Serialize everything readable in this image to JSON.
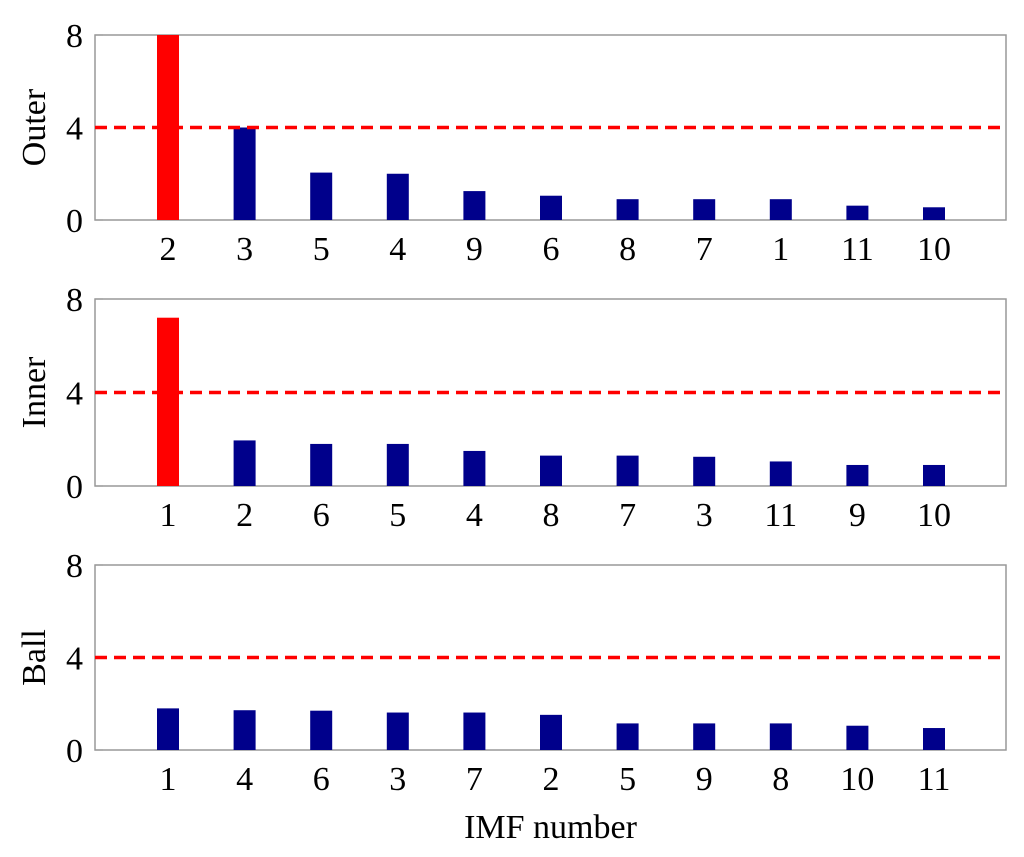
{
  "chart_data": [
    {
      "type": "bar",
      "ylabel": "Outer",
      "categories": [
        "2",
        "3",
        "5",
        "4",
        "9",
        "6",
        "8",
        "7",
        "1",
        "11",
        "10"
      ],
      "values": [
        8.0,
        4.0,
        2.05,
        2.0,
        1.25,
        1.05,
        0.9,
        0.9,
        0.9,
        0.62,
        0.55
      ],
      "highlighted": [
        true,
        false,
        false,
        false,
        false,
        false,
        false,
        false,
        false,
        false,
        false
      ],
      "ylim": [
        0,
        8
      ],
      "yticks": [
        "0",
        "4",
        "8"
      ],
      "threshold": 4
    },
    {
      "type": "bar",
      "ylabel": "Inner",
      "categories": [
        "1",
        "2",
        "6",
        "5",
        "4",
        "8",
        "7",
        "3",
        "11",
        "9",
        "10"
      ],
      "values": [
        7.2,
        1.95,
        1.8,
        1.8,
        1.5,
        1.3,
        1.3,
        1.25,
        1.05,
        0.9,
        0.9
      ],
      "highlighted": [
        true,
        false,
        false,
        false,
        false,
        false,
        false,
        false,
        false,
        false,
        false
      ],
      "ylim": [
        0,
        8
      ],
      "yticks": [
        "0",
        "4",
        "8"
      ],
      "threshold": 4
    },
    {
      "type": "bar",
      "ylabel": "Ball",
      "xlabel": "IMF number",
      "categories": [
        "1",
        "4",
        "6",
        "3",
        "7",
        "2",
        "5",
        "9",
        "8",
        "10",
        "11"
      ],
      "values": [
        1.8,
        1.72,
        1.7,
        1.62,
        1.62,
        1.52,
        1.15,
        1.15,
        1.15,
        1.05,
        0.95
      ],
      "highlighted": [
        false,
        false,
        false,
        false,
        false,
        false,
        false,
        false,
        false,
        false,
        false
      ],
      "ylim": [
        0,
        8
      ],
      "yticks": [
        "0",
        "4",
        "8"
      ],
      "threshold": 4
    }
  ],
  "colors": {
    "bar": "#00008b",
    "highlight": "#ff0000",
    "threshold": "#ff0000",
    "axes": "#999999"
  }
}
